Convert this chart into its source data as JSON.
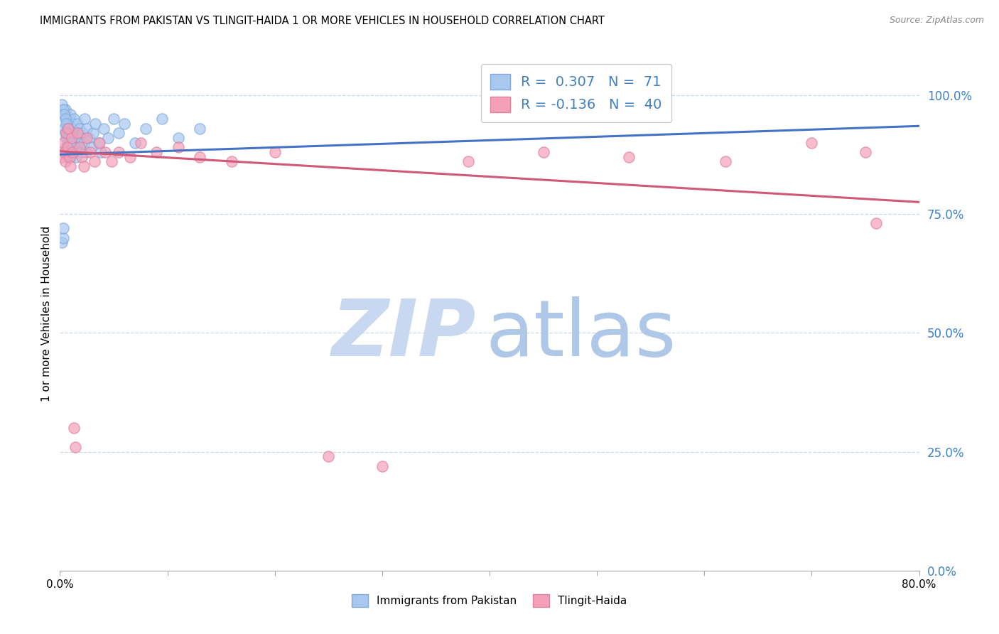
{
  "title": "IMMIGRANTS FROM PAKISTAN VS TLINGIT-HAIDA 1 OR MORE VEHICLES IN HOUSEHOLD CORRELATION CHART",
  "source": "Source: ZipAtlas.com",
  "ylabel": "1 or more Vehicles in Household",
  "ytick_vals": [
    0.0,
    0.25,
    0.5,
    0.75,
    1.0
  ],
  "ytick_labels": [
    "0.0%",
    "25.0%",
    "50.0%",
    "75.0%",
    "100.0%"
  ],
  "xtick_labels": [
    "0.0%",
    "",
    "",
    "",
    "",
    "",
    "",
    "",
    "80.0%"
  ],
  "legend1_R": "0.307",
  "legend1_N": "71",
  "legend2_R": "-0.136",
  "legend2_N": "40",
  "blue_color": "#a8c8f0",
  "blue_edge_color": "#80a8d8",
  "blue_line_color": "#4472c4",
  "pink_color": "#f4a0b8",
  "pink_edge_color": "#e080a0",
  "pink_line_color": "#d05878",
  "ytick_color": "#4080c0",
  "watermark_zip_color": "#c8d8f0",
  "watermark_atlas_color": "#b0c8e8",
  "blue_scatter_x": [
    0.002,
    0.003,
    0.003,
    0.004,
    0.004,
    0.005,
    0.005,
    0.005,
    0.006,
    0.006,
    0.006,
    0.007,
    0.007,
    0.007,
    0.008,
    0.008,
    0.008,
    0.009,
    0.009,
    0.009,
    0.01,
    0.01,
    0.01,
    0.011,
    0.011,
    0.012,
    0.012,
    0.013,
    0.013,
    0.014,
    0.014,
    0.015,
    0.015,
    0.016,
    0.016,
    0.017,
    0.018,
    0.018,
    0.019,
    0.02,
    0.021,
    0.022,
    0.023,
    0.024,
    0.025,
    0.027,
    0.029,
    0.031,
    0.033,
    0.036,
    0.038,
    0.041,
    0.045,
    0.05,
    0.055,
    0.06,
    0.07,
    0.08,
    0.095,
    0.11,
    0.13,
    0.002,
    0.003,
    0.004,
    0.005,
    0.006,
    0.007,
    0.008,
    0.009,
    0.01,
    0.011
  ],
  "blue_scatter_y": [
    0.69,
    0.7,
    0.72,
    0.93,
    0.96,
    0.88,
    0.92,
    0.97,
    0.89,
    0.91,
    0.95,
    0.88,
    0.9,
    0.94,
    0.87,
    0.89,
    0.93,
    0.88,
    0.9,
    0.95,
    0.87,
    0.91,
    0.96,
    0.89,
    0.92,
    0.88,
    0.93,
    0.9,
    0.95,
    0.89,
    0.91,
    0.87,
    0.92,
    0.88,
    0.94,
    0.9,
    0.89,
    0.93,
    0.91,
    0.88,
    0.92,
    0.9,
    0.95,
    0.88,
    0.93,
    0.91,
    0.89,
    0.92,
    0.94,
    0.9,
    0.88,
    0.93,
    0.91,
    0.95,
    0.92,
    0.94,
    0.9,
    0.93,
    0.95,
    0.91,
    0.93,
    0.98,
    0.97,
    0.96,
    0.95,
    0.94,
    0.93,
    0.92,
    0.91,
    0.9,
    0.89
  ],
  "pink_scatter_x": [
    0.002,
    0.003,
    0.004,
    0.005,
    0.006,
    0.007,
    0.008,
    0.009,
    0.01,
    0.011,
    0.012,
    0.013,
    0.014,
    0.016,
    0.018,
    0.02,
    0.022,
    0.025,
    0.028,
    0.032,
    0.037,
    0.042,
    0.048,
    0.055,
    0.065,
    0.075,
    0.09,
    0.11,
    0.13,
    0.16,
    0.2,
    0.25,
    0.3,
    0.38,
    0.45,
    0.53,
    0.62,
    0.7,
    0.75,
    0.76
  ],
  "pink_scatter_y": [
    0.87,
    0.9,
    0.88,
    0.86,
    0.92,
    0.89,
    0.93,
    0.87,
    0.85,
    0.91,
    0.88,
    0.3,
    0.26,
    0.92,
    0.89,
    0.87,
    0.85,
    0.91,
    0.88,
    0.86,
    0.9,
    0.88,
    0.86,
    0.88,
    0.87,
    0.9,
    0.88,
    0.89,
    0.87,
    0.86,
    0.88,
    0.24,
    0.22,
    0.86,
    0.88,
    0.87,
    0.86,
    0.9,
    0.88,
    0.73
  ],
  "xlim": [
    0.0,
    0.8
  ],
  "ylim": [
    0.0,
    1.08
  ],
  "blue_trend_x": [
    0.0,
    0.8
  ],
  "blue_trend_y": [
    0.875,
    0.935
  ],
  "pink_trend_x": [
    0.0,
    0.8
  ],
  "pink_trend_y": [
    0.882,
    0.775
  ]
}
